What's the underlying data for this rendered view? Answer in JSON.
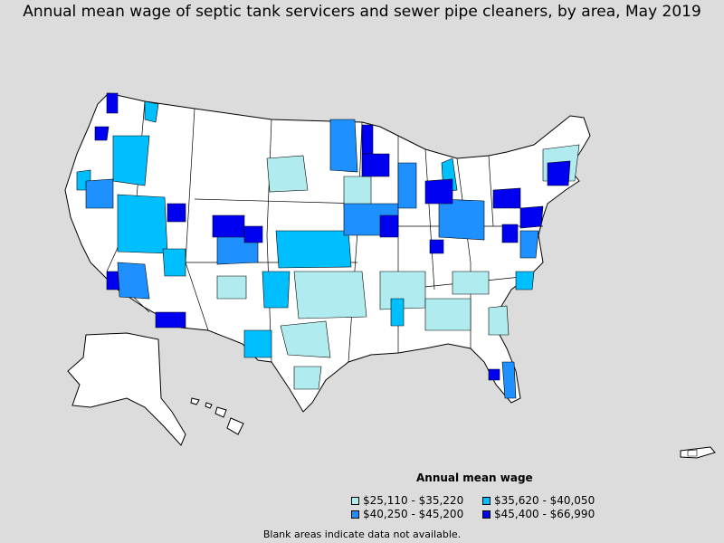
{
  "title": "Annual mean wage of septic tank servicers and sewer pipe cleaners, by area, May 2019",
  "legend": {
    "title": "Annual mean wage",
    "items": [
      {
        "label": "$25,110 - $35,220",
        "color": "#b0ecef"
      },
      {
        "label": "$35,620 - $40,050",
        "color": "#00bfff"
      },
      {
        "label": "$40,250 - $45,200",
        "color": "#1e90ff"
      },
      {
        "label": "$45,400 - $66,990",
        "color": "#0000f0"
      }
    ]
  },
  "note": "Blank areas indicate data not available.",
  "colors": {
    "background": "#dcdcdc",
    "no_data": "#ffffff",
    "border": "#000000"
  }
}
